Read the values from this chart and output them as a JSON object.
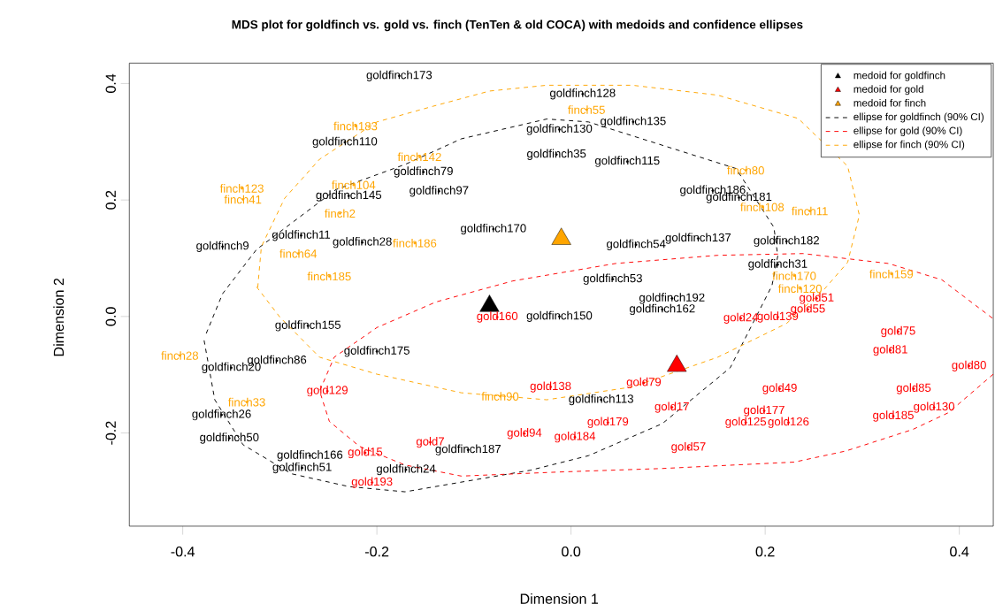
{
  "chart_data": {
    "type": "scatter",
    "title": "MDS plot for goldfinch vs. gold vs. finch (TenTen & old COCA) with medoids and confidence ellipses",
    "xlabel": "Dimension 1",
    "ylabel": "Dimension 2",
    "xlim": [
      -0.455,
      0.435
    ],
    "ylim": [
      -0.36,
      0.435
    ],
    "xticks": [
      -0.4,
      -0.2,
      {
        "value": 0,
        "label": "0.0"
      },
      0.2,
      0.4
    ],
    "yticks": [
      -0.2,
      {
        "value": 0,
        "label": "0.0"
      },
      0.2,
      0.4
    ],
    "legend": "top right",
    "series": [
      {
        "name": "medoid for goldfinch",
        "marker": "triangle",
        "color": "#000000",
        "x": [
          -0.084
        ],
        "values": [
          0.018
        ]
      },
      {
        "name": "medoid for gold",
        "marker": "triangle",
        "color": "#ff0000",
        "x": [
          0.109
        ],
        "values": [
          -0.085
        ]
      },
      {
        "name": "medoid for finch",
        "marker": "triangle",
        "color": "#ffa500",
        "x": [
          -0.01
        ],
        "values": [
          0.133
        ]
      },
      {
        "name": "ellipse for goldfinch (90% CI)",
        "type": "line",
        "line_style": "dashed",
        "color": "#000000",
        "x": [
          -0.378,
          -0.367,
          -0.338,
          -0.288,
          -0.229,
          -0.171,
          -0.042,
          0.018,
          0.094,
          0.164,
          0.207,
          0.213,
          0.209,
          0.17,
          0.018,
          -0.025,
          -0.113,
          -0.171,
          -0.242,
          -0.324,
          -0.359,
          -0.376
        ],
        "values": [
          -0.041,
          -0.143,
          -0.22,
          -0.27,
          -0.292,
          -0.301,
          -0.264,
          -0.239,
          -0.184,
          -0.088,
          0.053,
          0.104,
          0.153,
          0.254,
          0.334,
          0.339,
          0.305,
          0.261,
          0.218,
          0.115,
          0.039,
          -0.03
        ]
      },
      {
        "name": "ellipse for gold (90% CI)",
        "type": "line",
        "line_style": "dashed",
        "color": "#ff0000",
        "x": [
          0.435,
          0.389,
          0.352,
          0.283,
          0.23,
          0.094,
          -0.012,
          -0.113,
          -0.171,
          -0.218,
          -0.249,
          -0.259,
          -0.244,
          -0.2,
          -0.139,
          -0.06,
          0.046,
          0.151,
          0.239,
          0.327,
          0.382,
          0.435
        ],
        "values": [
          -0.099,
          -0.165,
          -0.194,
          -0.231,
          -0.25,
          -0.261,
          -0.267,
          -0.274,
          -0.255,
          -0.223,
          -0.18,
          -0.128,
          -0.07,
          -0.019,
          0.025,
          0.061,
          0.091,
          0.105,
          0.108,
          0.091,
          0.063,
          -0.004
        ]
      },
      {
        "name": "ellipse for finch (90% CI)",
        "type": "line",
        "line_style": "dashed",
        "color": "#ffa500",
        "x": [
          -0.324,
          -0.3,
          -0.259,
          -0.2,
          -0.113,
          -0.025,
          0.063,
          0.151,
          0.222,
          0.261,
          0.285,
          0.297,
          0.285,
          0.234,
          0.151,
          0.063,
          -0.025,
          -0.084,
          -0.142,
          -0.2,
          -0.259,
          -0.295,
          -0.319,
          -0.323
        ],
        "values": [
          0.051,
          -0.001,
          -0.07,
          -0.099,
          -0.131,
          -0.143,
          -0.121,
          -0.07,
          -0.012,
          0.047,
          0.093,
          0.174,
          0.258,
          0.34,
          0.38,
          0.397,
          0.397,
          0.387,
          0.361,
          0.334,
          0.27,
          0.203,
          0.12,
          0.045
        ]
      },
      {
        "marker": "circle",
        "color": "#000000",
        "x": [
          -0.177,
          0.012,
          0.064,
          -0.359,
          -0.152,
          -0.229,
          -0.278,
          -0.215,
          -0.233,
          -0.35,
          -0.303,
          -0.271,
          -0.36,
          -0.352,
          -0.269,
          -0.277,
          -0.17,
          -0.106,
          -0.2,
          0.031,
          0.146,
          0.173,
          0.213,
          0.131,
          0.067,
          0.058,
          -0.015,
          -0.012,
          0.043,
          0.104,
          0.094,
          -0.012,
          -0.136,
          -0.08,
          0.222
        ],
        "values": [
          0.413,
          0.382,
          0.334,
          0.12,
          0.248,
          0.207,
          0.139,
          0.127,
          0.299,
          -0.088,
          -0.076,
          -0.016,
          -0.169,
          -0.209,
          -0.239,
          -0.26,
          -0.263,
          -0.229,
          -0.06,
          -0.143,
          0.216,
          0.204,
          0.089,
          0.134,
          0.123,
          0.266,
          0.278,
          0.321,
          0.064,
          0.031,
          0.012,
          0.0,
          0.215,
          0.15,
          0.129
        ],
        "value_labels": [
          "goldfinch173",
          "goldfinch128",
          "goldfinch135",
          "goldfinch9",
          "goldfinch79",
          "goldfinch145",
          "goldfinch11",
          "goldfinch28",
          "goldfinch110",
          "goldfinch20",
          "goldfinch86",
          "goldfinch155",
          "goldfinch26",
          "goldfinch50",
          "goldfinch166",
          "goldfinch51",
          "goldfinch24",
          "goldfinch187",
          "goldfinch175",
          "goldfinch113",
          "goldfinch186",
          "goldfinch181",
          "goldfinch31",
          "goldfinch137",
          "goldfinch54",
          "goldfinch115",
          "goldfinch35",
          "goldfinch130",
          "goldfinch53",
          "goldfinch192",
          "goldfinch162",
          "goldfinch150",
          "goldfinch97",
          "goldfinch170",
          "goldfinch182"
        ]
      },
      {
        "marker": "circle",
        "color": "#ff0000",
        "x": [
          0.121,
          0.004,
          -0.048,
          -0.205,
          -0.251,
          -0.145,
          -0.212,
          0.253,
          0.244,
          0.337,
          0.329,
          0.41,
          0.374,
          0.332,
          0.353,
          0.224,
          0.199,
          0.215,
          0.104,
          0.213,
          0.175,
          -0.021,
          0.038,
          0.075,
          0.18,
          -0.076
        ],
        "values": [
          -0.225,
          -0.207,
          -0.201,
          -0.285,
          -0.128,
          -0.216,
          -0.234,
          0.031,
          0.012,
          -0.026,
          -0.058,
          -0.085,
          -0.156,
          -0.171,
          -0.124,
          -0.182,
          -0.162,
          -0.124,
          -0.156,
          -0.001,
          -0.003,
          -0.121,
          -0.182,
          -0.114,
          -0.182,
          -0.001
        ],
        "value_labels": [
          "gold57",
          "gold184",
          "gold94",
          "gold193",
          "gold129",
          "gold7",
          "gold15",
          "gold51",
          "gold55",
          "gold75",
          "gold81",
          "gold80",
          "gold130",
          "gold185",
          "gold85",
          "gold126",
          "gold177",
          "gold49",
          "gold17",
          "gold139",
          "gold24",
          "gold138",
          "gold179",
          "gold79",
          "gold125",
          "gold160"
        ]
      },
      {
        "marker": "circle",
        "color": "#ffa500",
        "x": [
          -0.222,
          -0.156,
          -0.224,
          -0.339,
          -0.338,
          -0.161,
          -0.281,
          -0.249,
          -0.403,
          -0.334,
          -0.073,
          0.18,
          0.246,
          0.33,
          0.23,
          0.236,
          0.016,
          0.197,
          -0.238
        ],
        "values": [
          0.327,
          0.274,
          0.226,
          0.22,
          0.201,
          0.126,
          0.108,
          0.069,
          -0.067,
          -0.147,
          -0.137,
          0.251,
          0.181,
          0.073,
          0.07,
          0.048,
          0.355,
          0.188,
          0.177
        ],
        "value_labels": [
          "finch183",
          "finch142",
          "finch104",
          "finch123",
          "finch41",
          "finch186",
          "finch64",
          "finch185",
          "finch28",
          "finch33",
          "finch90",
          "finch80",
          "finch11",
          "finch159",
          "finch170",
          "finch120",
          "finch55",
          "finch108",
          "finch2"
        ]
      }
    ]
  }
}
